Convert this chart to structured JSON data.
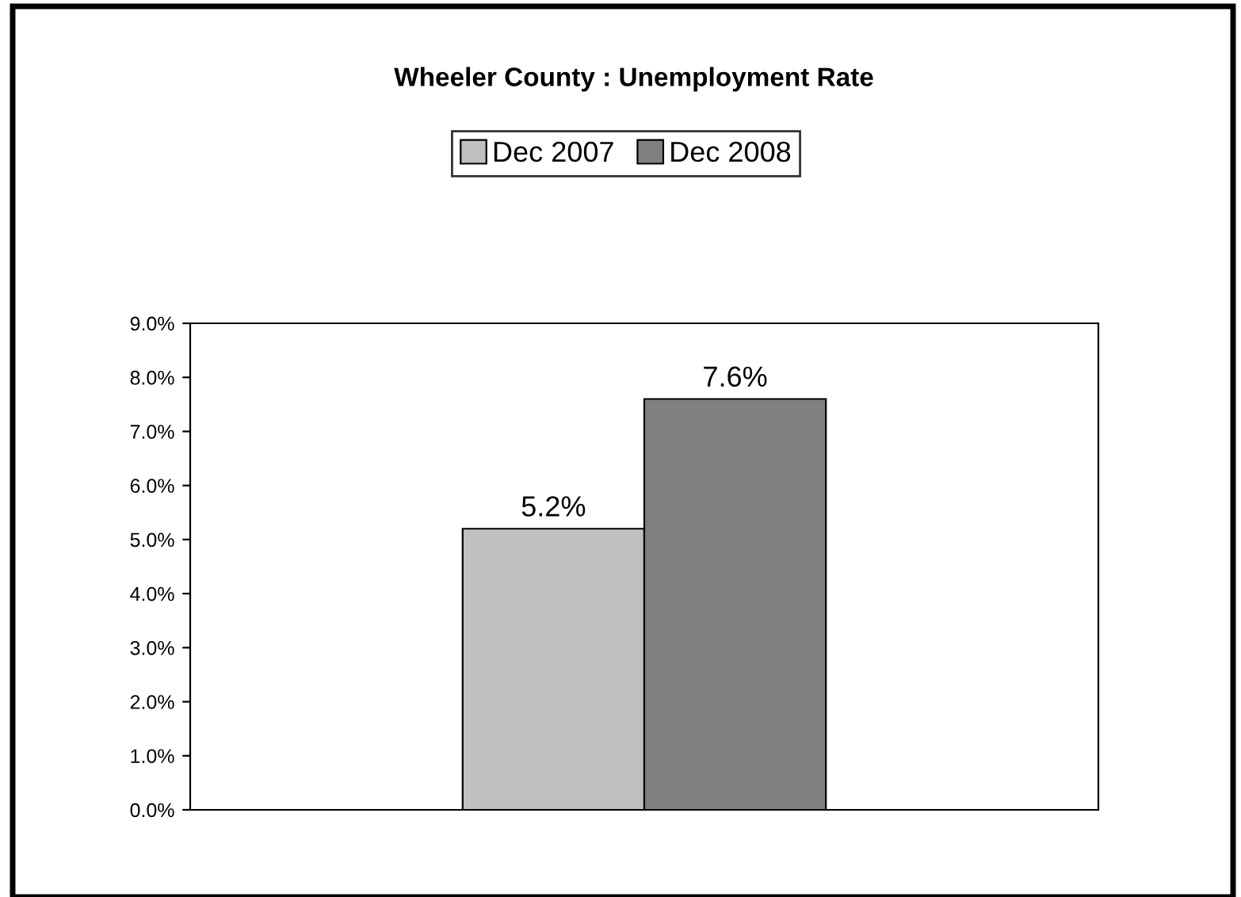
{
  "chart_data": {
    "type": "bar",
    "title": "Wheeler County : Unemployment Rate",
    "categories": [
      null
    ],
    "series": [
      {
        "name": "Dec 2007",
        "color": "#c0c0c0",
        "values": [
          5.2
        ],
        "value_labels": [
          "5.2%"
        ]
      },
      {
        "name": "Dec 2008",
        "color": "#808080",
        "values": [
          7.6
        ],
        "value_labels": [
          "7.6%"
        ]
      }
    ],
    "ylim": [
      0,
      9
    ],
    "yticks": [
      {
        "value": 0,
        "label": "0.0%"
      },
      {
        "value": 1,
        "label": "1.0%"
      },
      {
        "value": 2,
        "label": "2.0%"
      },
      {
        "value": 3,
        "label": "3.0%"
      },
      {
        "value": 4,
        "label": "4.0%"
      },
      {
        "value": 5,
        "label": "5.0%"
      },
      {
        "value": 6,
        "label": "6.0%"
      },
      {
        "value": 7,
        "label": "7.0%"
      },
      {
        "value": 8,
        "label": "8.0%"
      },
      {
        "value": 9,
        "label": "9.0%"
      }
    ],
    "grid": false,
    "legend": "top"
  }
}
